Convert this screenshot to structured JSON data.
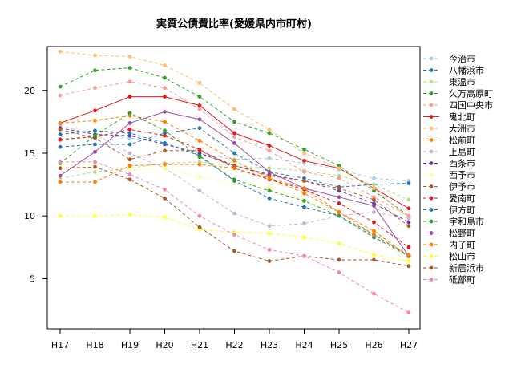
{
  "chart_data": {
    "type": "line",
    "title": "実質公債費比率(愛媛県内市町村)",
    "xlabel": "",
    "ylabel": "",
    "categories": [
      "H17",
      "H18",
      "H19",
      "H20",
      "H21",
      "H22",
      "H23",
      "H24",
      "H25",
      "H26",
      "H27"
    ],
    "yticks": [
      5,
      10,
      15,
      20
    ],
    "ylim": [
      1.0,
      23.5
    ],
    "grid": false,
    "legend": "right",
    "series": [
      {
        "name": "今治市",
        "color": "#a6cee3",
        "dash": "4,3",
        "values": [
          17.2,
          16.5,
          16.2,
          15.8,
          15.0,
          14.5,
          14.6,
          14.2,
          13.7,
          13.0,
          12.8
        ]
      },
      {
        "name": "八幡浜市",
        "color": "#1f78b4",
        "dash": "4,3",
        "values": [
          15.5,
          15.7,
          15.7,
          16.6,
          17.0,
          15.0,
          13.5,
          13.0,
          12.3,
          12.5,
          12.6
        ]
      },
      {
        "name": "東温市",
        "color": "#b2df8a",
        "dash": "4,3",
        "values": [
          13.0,
          13.5,
          13.8,
          14.2,
          14.3,
          14.0,
          13.8,
          13.6,
          13.2,
          12.5,
          11.3
        ]
      },
      {
        "name": "久万高原町",
        "color": "#33a02c",
        "dash": "4,3",
        "values": [
          20.3,
          21.6,
          21.8,
          21.0,
          19.5,
          17.5,
          16.6,
          15.3,
          14.0,
          12.0,
          10.0
        ]
      },
      {
        "name": "四国中央市",
        "color": "#fb9a99",
        "dash": "4,3",
        "values": [
          19.6,
          20.2,
          20.7,
          20.2,
          18.5,
          16.3,
          15.2,
          13.5,
          13.0,
          11.5,
          10.0
        ]
      },
      {
        "name": "鬼北町",
        "color": "#e31a1c",
        "dash": "",
        "values": [
          17.4,
          18.4,
          19.5,
          19.5,
          18.8,
          16.6,
          15.6,
          14.4,
          13.8,
          12.2,
          10.6
        ]
      },
      {
        "name": "大洲市",
        "color": "#fdbf6f",
        "dash": "4,3",
        "values": [
          23.1,
          22.8,
          22.7,
          22.0,
          20.6,
          18.5,
          16.9,
          15.0,
          13.8,
          12.2,
          9.8
        ]
      },
      {
        "name": "松前町",
        "color": "#ff7f00",
        "dash": "4,3",
        "values": [
          17.4,
          17.6,
          18.0,
          17.5,
          16.0,
          14.4,
          13.0,
          11.8,
          10.3,
          8.8,
          6.8
        ]
      },
      {
        "name": "上島町",
        "color": "#cab2d6",
        "dash": "4,3",
        "values": [
          16.0,
          16.5,
          15.0,
          13.8,
          12.0,
          10.2,
          9.2,
          9.4,
          10.0,
          10.3,
          9.8
        ]
      },
      {
        "name": "西条市",
        "color": "#6a3d9a",
        "dash": "4,3",
        "values": [
          17.0,
          16.5,
          16.4,
          15.7,
          15.0,
          14.0,
          13.3,
          12.8,
          12.0,
          11.0,
          9.5
        ]
      },
      {
        "name": "西予市",
        "color": "#ffff99",
        "dash": "4,3",
        "values": [
          14.1,
          14.1,
          13.7,
          13.8,
          13.1,
          12.6,
          12.3,
          11.3,
          10.0,
          8.2,
          6.6
        ]
      },
      {
        "name": "伊予市",
        "color": "#b15928",
        "dash": "4,3",
        "values": [
          16.9,
          16.2,
          14.5,
          15.2,
          15.2,
          14.0,
          13.2,
          12.8,
          12.2,
          11.3,
          9.2
        ]
      },
      {
        "name": "愛南町",
        "color": "#e31a1c",
        "dash": "4,3",
        "values": [
          16.1,
          16.3,
          16.9,
          16.4,
          15.3,
          13.8,
          12.9,
          12.1,
          11.0,
          9.5,
          7.5
        ]
      },
      {
        "name": "伊方町",
        "color": "#1f78b4",
        "dash": "4,3",
        "values": [
          16.5,
          16.8,
          16.6,
          15.8,
          14.8,
          12.8,
          11.4,
          10.7,
          10.0,
          8.3,
          6.8
        ]
      },
      {
        "name": "宇和島市",
        "color": "#33a02c",
        "dash": "4,3",
        "values": [
          14.2,
          16.4,
          18.2,
          16.8,
          14.7,
          12.9,
          12.0,
          11.2,
          10.0,
          8.5,
          6.8
        ]
      },
      {
        "name": "松野町",
        "color": "#984ea3",
        "dash": "",
        "values": [
          13.2,
          15.1,
          17.4,
          18.3,
          17.7,
          15.8,
          13.5,
          12.2,
          11.5,
          10.8,
          6.8
        ]
      },
      {
        "name": "内子町",
        "color": "#ff7f00",
        "dash": "4,3",
        "values": [
          12.7,
          12.7,
          14.0,
          14.1,
          14.1,
          13.8,
          13.0,
          12.2,
          10.3,
          8.5,
          6.9
        ]
      },
      {
        "name": "松山市",
        "color": "#ffff33",
        "dash": "4,3",
        "values": [
          10.0,
          10.0,
          10.1,
          9.9,
          8.9,
          8.7,
          8.6,
          8.3,
          7.8,
          6.9,
          6.4
        ]
      },
      {
        "name": "新居浜市",
        "color": "#a65628",
        "dash": "4,3",
        "values": [
          13.8,
          13.9,
          12.9,
          11.4,
          9.1,
          7.2,
          6.4,
          6.8,
          6.5,
          6.5,
          6.0
        ]
      },
      {
        "name": "砥部町",
        "color": "#f781bf",
        "dash": "4,3",
        "values": [
          14.3,
          14.3,
          13.3,
          12.1,
          10.0,
          8.5,
          7.3,
          6.8,
          5.5,
          3.8,
          2.3
        ]
      }
    ]
  }
}
